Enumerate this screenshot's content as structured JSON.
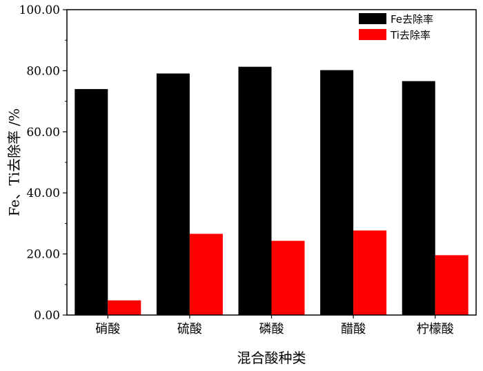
{
  "chart_data": {
    "type": "bar",
    "title": "",
    "xlabel": "混合酸种类",
    "ylabel": "Fe、Ti去除率 /%",
    "categories": [
      "硝酸",
      "硫酸",
      "磷酸",
      "醋酸",
      "柠檬酸"
    ],
    "series": [
      {
        "name": "Fe去除率",
        "color": "#000000",
        "values": [
          74.0,
          79.1,
          81.3,
          80.2,
          76.6
        ]
      },
      {
        "name": "Ti去除率",
        "color": "#ff0000",
        "values": [
          4.8,
          26.6,
          24.3,
          27.7,
          19.6
        ]
      }
    ],
    "ylim": [
      0,
      100
    ],
    "yticks": [
      "0.00",
      "20.00",
      "40.00",
      "60.00",
      "80.00",
      "100.00"
    ],
    "grid": false,
    "legend_position": "top-right"
  }
}
